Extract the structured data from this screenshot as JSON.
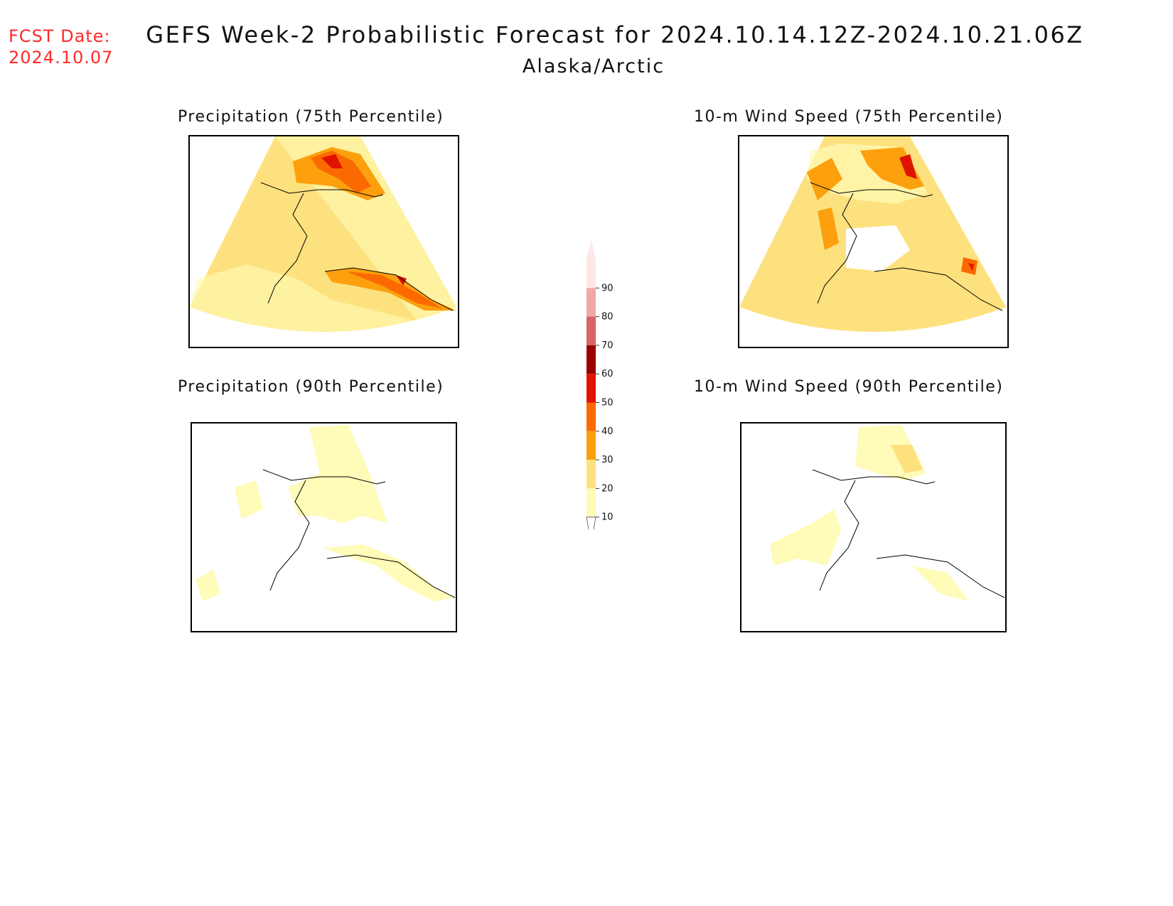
{
  "header": {
    "fcst_label": "FCST Date:",
    "fcst_date": "2024.10.07",
    "title": "GEFS Week-2 Probabilistic Forecast for 2024.10.14.12Z-2024.10.21.06Z",
    "subtitle": "Alaska/Arctic"
  },
  "panels": [
    {
      "id": "precip75",
      "title": "Precipitation (75th Percentile)"
    },
    {
      "id": "wind75",
      "title": "10-m Wind Speed (75th Percentile)"
    },
    {
      "id": "precip90",
      "title": "Precipitation (90th Percentile)"
    },
    {
      "id": "wind90",
      "title": "10-m Wind Speed (90th Percentile)"
    }
  ],
  "colorbar": {
    "ticks": [
      "10",
      "20",
      "30",
      "40",
      "50",
      "60",
      "70",
      "80",
      "90"
    ],
    "colors": [
      "#fffbb8",
      "#fde17e",
      "#fca00d",
      "#fb6a00",
      "#e11200",
      "#9b0000",
      "#d96464",
      "#f2a7a7",
      "#fde7e7"
    ]
  }
}
